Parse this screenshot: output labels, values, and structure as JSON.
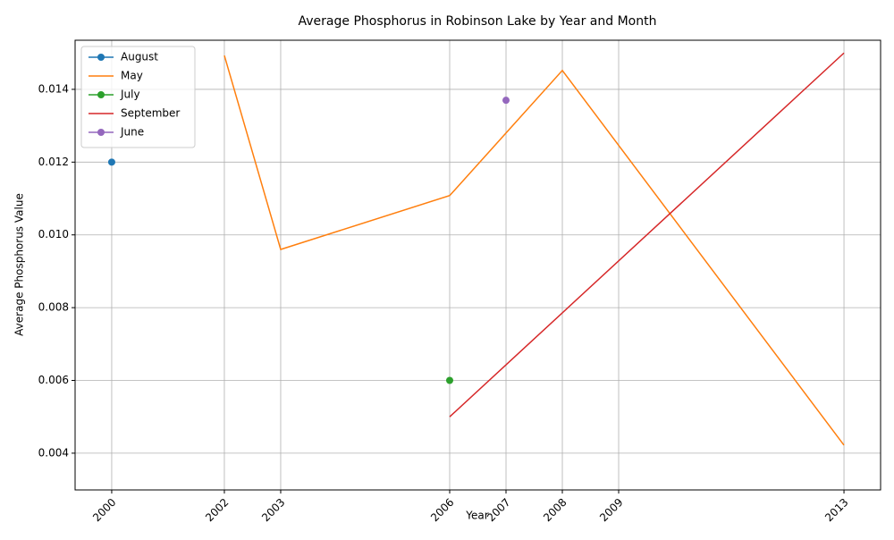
{
  "chart_data": {
    "type": "line",
    "title": "Average Phosphorus in Robinson Lake by Year and Month",
    "x_label": "Year",
    "y_label": "Average Phosphorus Value",
    "xlim": [
      1999.35,
      2013.65
    ],
    "xticks": [
      2000,
      2002,
      2003,
      2006,
      2007,
      2008,
      2009,
      2013
    ],
    "ylim": [
      0.00299,
      0.01535
    ],
    "yticks": [
      0.004,
      0.006,
      0.008,
      {
        "value": 0.01,
        "label": "0.010"
      },
      0.012,
      0.014
    ],
    "grid": true,
    "legend": "upper left",
    "series": [
      {
        "name": "August",
        "color": "#1f77b4",
        "marker": true,
        "x": [
          2000
        ],
        "values": [
          0.012
        ]
      },
      {
        "name": "May",
        "color": "#ff7f0e",
        "marker": false,
        "x": [
          2002,
          2003,
          2006,
          2008,
          2013
        ],
        "values": [
          0.01493,
          0.0096,
          0.01108,
          0.01452,
          0.00422
        ]
      },
      {
        "name": "July",
        "color": "#2ca02c",
        "marker": true,
        "x": [
          2006
        ],
        "values": [
          0.006
        ]
      },
      {
        "name": "September",
        "color": "#d62728",
        "marker": false,
        "x": [
          2006,
          2013
        ],
        "values": [
          0.005,
          0.015
        ]
      },
      {
        "name": "June",
        "color": "#9467bd",
        "marker": true,
        "x": [
          2007
        ],
        "values": [
          0.0137
        ]
      }
    ]
  }
}
